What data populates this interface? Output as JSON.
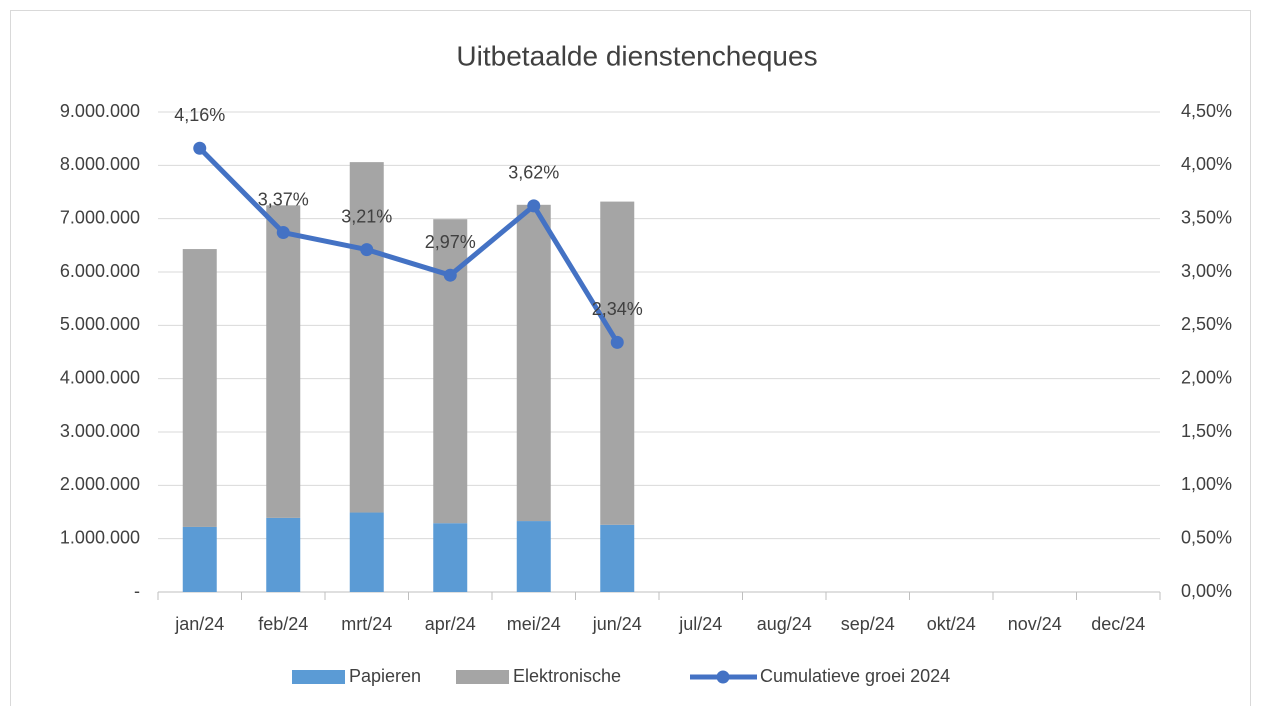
{
  "chart_data": {
    "type": "bar",
    "stacked": true,
    "title": "Uitbetaalde dienstencheques",
    "categories": [
      "jan/24",
      "feb/24",
      "mrt/24",
      "apr/24",
      "mei/24",
      "jun/24",
      "jul/24",
      "aug/24",
      "sep/24",
      "okt/24",
      "nov/24",
      "dec/24"
    ],
    "series": [
      {
        "name": "Papieren",
        "type": "bar",
        "color": "#5b9bd5",
        "values": [
          1220000,
          1390000,
          1490000,
          1290000,
          1330000,
          1260000,
          null,
          null,
          null,
          null,
          null,
          null
        ]
      },
      {
        "name": "Elektronische",
        "type": "bar",
        "color": "#a5a5a5",
        "values": [
          5210000,
          5860000,
          6570000,
          5700000,
          5930000,
          6060000,
          null,
          null,
          null,
          null,
          null,
          null
        ]
      },
      {
        "name": "Cumulatieve groei 2024",
        "type": "line",
        "axis": "y2",
        "color": "#4472c4",
        "values": [
          4.16,
          3.37,
          3.21,
          2.97,
          3.62,
          2.34,
          null,
          null,
          null,
          null,
          null,
          null
        ],
        "value_labels": [
          "4,16%",
          "3,37%",
          "3,21%",
          "2,97%",
          "3,62%",
          "2,34%",
          null,
          null,
          null,
          null,
          null,
          null
        ]
      }
    ],
    "ylim": [
      0,
      9000000
    ],
    "yticks": [
      {
        "value": 0,
        "label": "-"
      },
      {
        "value": 1000000,
        "label": "1.000.000"
      },
      {
        "value": 2000000,
        "label": "2.000.000"
      },
      {
        "value": 3000000,
        "label": "3.000.000"
      },
      {
        "value": 4000000,
        "label": "4.000.000"
      },
      {
        "value": 5000000,
        "label": "5.000.000"
      },
      {
        "value": 6000000,
        "label": "6.000.000"
      },
      {
        "value": 7000000,
        "label": "7.000.000"
      },
      {
        "value": 8000000,
        "label": "8.000.000"
      },
      {
        "value": 9000000,
        "label": "9.000.000"
      }
    ],
    "y2lim": [
      0,
      4.5
    ],
    "y2ticks": [
      {
        "value": 0,
        "label": "0,00%"
      },
      {
        "value": 0.5,
        "label": "0,50%"
      },
      {
        "value": 1,
        "label": "1,00%"
      },
      {
        "value": 1.5,
        "label": "1,50%"
      },
      {
        "value": 2,
        "label": "2,00%"
      },
      {
        "value": 2.5,
        "label": "2,50%"
      },
      {
        "value": 3,
        "label": "3,00%"
      },
      {
        "value": 3.5,
        "label": "3,50%"
      },
      {
        "value": 4,
        "label": "4,00%"
      },
      {
        "value": 4.5,
        "label": "4,50%"
      }
    ],
    "grid": true,
    "legend": "bottom"
  }
}
